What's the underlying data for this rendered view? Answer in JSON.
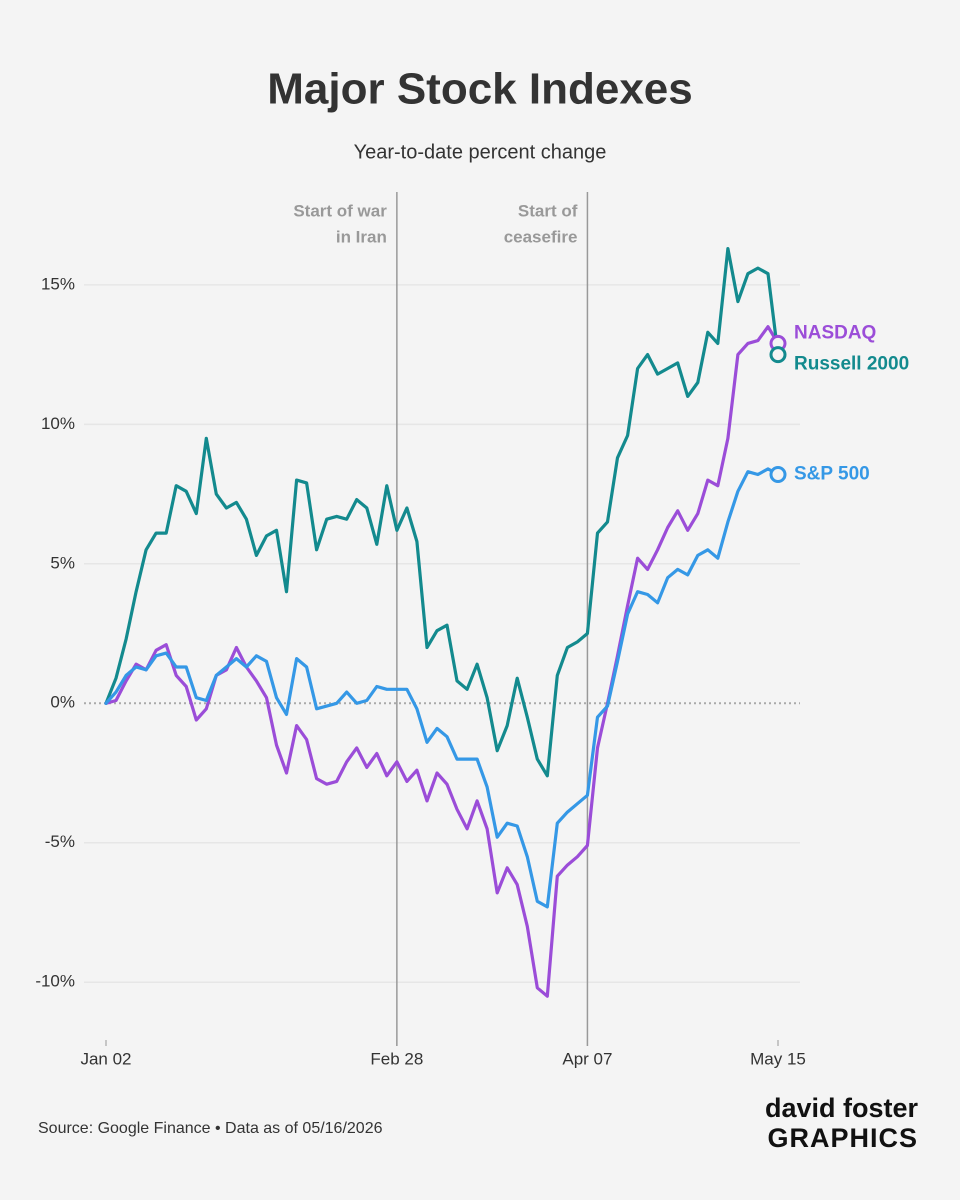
{
  "chart_data": {
    "type": "line",
    "title": "Major Stock Indexes",
    "subtitle": "Year-to-date percent change",
    "source": "Source: Google Finance • Data as of 05/16/2026",
    "credit": [
      "david foster",
      "GRAPHICS"
    ],
    "categories": [
      "Jan 02",
      null,
      null,
      null,
      null,
      null,
      null,
      null,
      null,
      null,
      null,
      null,
      null,
      null,
      null,
      null,
      null,
      null,
      null,
      null,
      null,
      null,
      null,
      null,
      null,
      null,
      null,
      null,
      null,
      "Feb 28",
      null,
      null,
      null,
      null,
      null,
      null,
      null,
      null,
      null,
      null,
      null,
      null,
      null,
      null,
      null,
      null,
      null,
      null,
      "Apr 07",
      null,
      null,
      null,
      null,
      null,
      null,
      null,
      null,
      null,
      null,
      null,
      null,
      null,
      null,
      null,
      null,
      null,
      null,
      "May 15"
    ],
    "series": [
      {
        "name": "NASDAQ",
        "color": "#9b4dd8",
        "values": [
          0,
          0.1,
          0.8,
          1.4,
          1.2,
          1.9,
          2.1,
          1.0,
          0.6,
          -0.6,
          -0.2,
          1.0,
          1.2,
          2.0,
          1.3,
          0.8,
          0.2,
          -1.5,
          -2.5,
          -0.8,
          -1.3,
          -2.7,
          -2.9,
          -2.8,
          -2.1,
          -1.6,
          -2.3,
          -1.8,
          -2.6,
          -2.1,
          -2.8,
          -2.4,
          -3.5,
          -2.5,
          -2.9,
          -3.8,
          -4.5,
          -3.5,
          -4.5,
          -6.8,
          -5.9,
          -6.5,
          -8.0,
          -10.2,
          -10.5,
          -6.2,
          -5.8,
          -5.5,
          -5.1,
          -1.6,
          0.0,
          1.7,
          3.5,
          5.2,
          4.8,
          5.5,
          6.3,
          6.9,
          6.2,
          6.8,
          8.0,
          7.8,
          9.5,
          12.5,
          12.9,
          13.0,
          13.5,
          12.9
        ]
      },
      {
        "name": "Russell 2000",
        "color": "#138a8e",
        "values": [
          0,
          0.9,
          2.3,
          4.0,
          5.5,
          6.1,
          6.1,
          7.8,
          7.6,
          6.8,
          9.5,
          7.5,
          7.0,
          7.2,
          6.6,
          5.3,
          6.0,
          6.2,
          4.0,
          8.0,
          7.9,
          5.5,
          6.6,
          6.7,
          6.6,
          7.3,
          7.0,
          5.7,
          7.8,
          6.2,
          7.0,
          5.8,
          2.0,
          2.6,
          2.8,
          0.8,
          0.5,
          1.4,
          0.2,
          -1.7,
          -0.8,
          0.9,
          -0.5,
          -2.0,
          -2.6,
          1.0,
          2.0,
          2.2,
          2.5,
          6.1,
          6.5,
          8.8,
          9.6,
          12.0,
          12.5,
          11.8,
          12.0,
          12.2,
          11.0,
          11.5,
          13.3,
          12.9,
          16.3,
          14.4,
          15.4,
          15.6,
          15.4,
          12.5
        ]
      },
      {
        "name": "S&P 500",
        "color": "#3598e6",
        "values": [
          0,
          0.4,
          1.0,
          1.3,
          1.2,
          1.7,
          1.8,
          1.3,
          1.3,
          0.2,
          0.1,
          1.0,
          1.3,
          1.6,
          1.3,
          1.7,
          1.5,
          0.2,
          -0.4,
          1.6,
          1.3,
          -0.2,
          -0.1,
          0.0,
          0.4,
          0.0,
          0.1,
          0.6,
          0.5,
          0.5,
          0.5,
          -0.2,
          -1.4,
          -0.9,
          -1.2,
          -2.0,
          -2.0,
          -2.0,
          -3.0,
          -4.8,
          -4.3,
          -4.4,
          -5.5,
          -7.1,
          -7.3,
          -4.3,
          -3.9,
          -3.6,
          -3.3,
          -0.5,
          -0.1,
          1.5,
          3.2,
          4.0,
          3.9,
          3.6,
          4.5,
          4.8,
          4.6,
          5.3,
          5.5,
          5.2,
          6.5,
          7.6,
          8.3,
          8.2,
          8.4,
          8.2
        ]
      }
    ],
    "annotations": [
      {
        "x": "Feb 28",
        "text": [
          "Start of war",
          "in Iran"
        ]
      },
      {
        "x": "Apr 07",
        "text": [
          "Start of",
          "ceasefire"
        ]
      }
    ],
    "ylim": [
      -12,
      18.4
    ],
    "yticks": [
      {
        "value": -10,
        "label": "-10%"
      },
      {
        "value": -5,
        "label": "-5%"
      },
      {
        "value": 0,
        "label": "0%"
      },
      {
        "value": 5,
        "label": "5%"
      },
      {
        "value": 10,
        "label": "10%"
      },
      {
        "value": 15,
        "label": "15%"
      }
    ],
    "grid": true
  }
}
